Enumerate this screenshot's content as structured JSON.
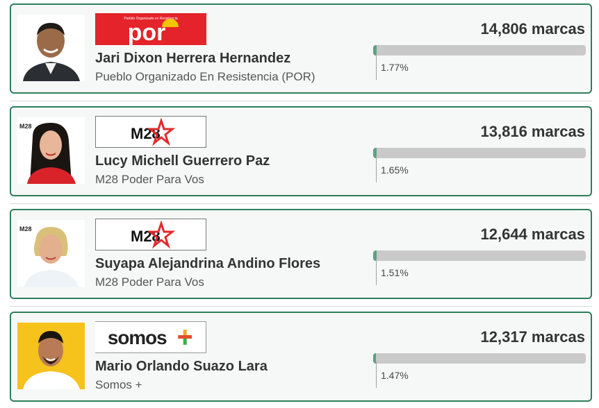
{
  "candidates": [
    {
      "name": "Jari Dixon Herrera Hernandez",
      "party": "Pueblo Organizado En Resistencia (POR)",
      "votes": "14,806 marcas",
      "percent": "1.77%",
      "percent_value": 1.77,
      "logo": {
        "type": "por",
        "text": "por",
        "small_text": "Partido Organizado en Resistencia"
      },
      "photo": {
        "bg": "#ffffff",
        "shirt": "#2b2f33",
        "skin": "#9b6a48"
      }
    },
    {
      "name": "Lucy Michell Guerrero Paz",
      "party": "M28 Poder Para Vos",
      "votes": "13,816 marcas",
      "percent": "1.65%",
      "percent_value": 1.65,
      "logo": {
        "type": "m28",
        "text": "M28"
      },
      "photo": {
        "bg": "#ffffff",
        "shirt": "#d8232a",
        "skin": "#e8b79a",
        "badge": "M28"
      }
    },
    {
      "name": "Suyapa Alejandrina Andino Flores",
      "party": "M28 Poder Para Vos",
      "votes": "12,644 marcas",
      "percent": "1.51%",
      "percent_value": 1.51,
      "logo": {
        "type": "m28",
        "text": "M28"
      },
      "photo": {
        "bg": "#ffffff",
        "shirt": "#ffffff",
        "skin": "#e2b08f",
        "badge": "M28"
      }
    },
    {
      "name": "Mario Orlando Suazo Lara",
      "party": "Somos +",
      "votes": "12,317 marcas",
      "percent": "1.47%",
      "percent_value": 1.47,
      "logo": {
        "type": "somos",
        "text": "somos",
        "plus": "+"
      },
      "photo": {
        "bg": "#f6c21c",
        "shirt": "#ffffff",
        "skin": "#b87b55"
      }
    }
  ],
  "colors": {
    "card_border": "#2e7d5b",
    "bar_fill": "#5aa382",
    "bar_track": "#c9c9c9",
    "por_red": "#e5232b",
    "m28_red": "#e22a2a"
  }
}
